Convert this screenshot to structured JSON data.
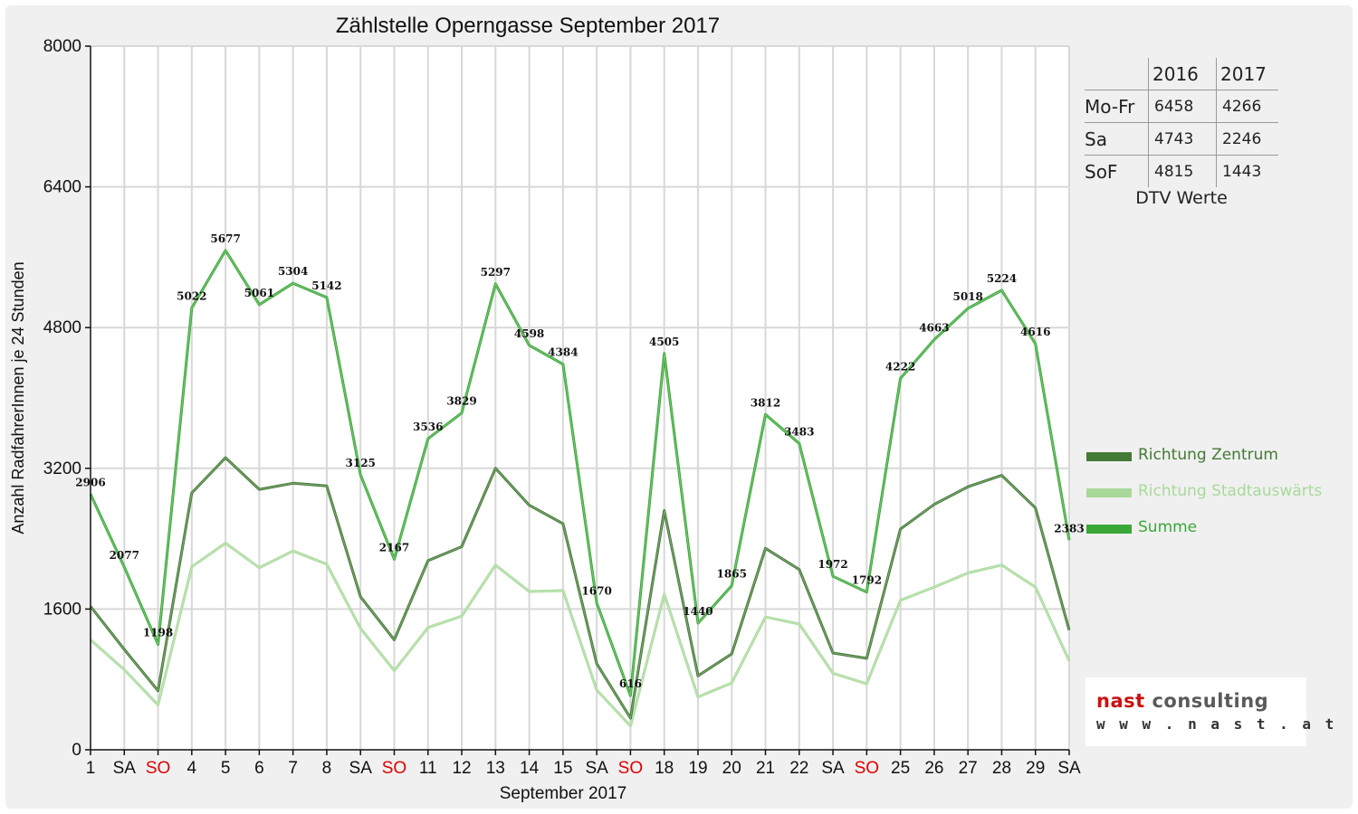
{
  "chart_data": {
    "type": "line",
    "title": "Zählstelle Operngasse September 2017",
    "xlabel": "September 2017",
    "ylabel": "Anzahl RadfahrerInnen je 24 Stunden",
    "ylim": [
      0,
      8000
    ],
    "yticks": [
      "0",
      "1600",
      "3200",
      "4800",
      "6400",
      "8000"
    ],
    "grid": true,
    "legend_position": "right",
    "categories": [
      "1",
      "SA",
      "SO",
      "4",
      "5",
      "6",
      "7",
      "8",
      "SA",
      "SO",
      "11",
      "12",
      "13",
      "14",
      "15",
      "SA",
      "SO",
      "18",
      "19",
      "20",
      "21",
      "22",
      "SA",
      "SO",
      "25",
      "26",
      "27",
      "28",
      "29",
      "SA"
    ],
    "category_colors": [
      "#111111",
      "#111111",
      "#e00000",
      "#111111",
      "#111111",
      "#111111",
      "#111111",
      "#111111",
      "#111111",
      "#e00000",
      "#111111",
      "#111111",
      "#111111",
      "#111111",
      "#111111",
      "#111111",
      "#e00000",
      "#111111",
      "#111111",
      "#111111",
      "#111111",
      "#111111",
      "#111111",
      "#e00000",
      "#111111",
      "#111111",
      "#111111",
      "#111111",
      "#111111",
      "#111111"
    ],
    "series": [
      {
        "name": "Richtung Zentrum",
        "color": "#437a35",
        "values": [
          1630,
          1140,
          670,
          2920,
          3320,
          2960,
          3030,
          3000,
          1740,
          1250,
          2150,
          2310,
          3200,
          2780,
          2570,
          980,
          360,
          2720,
          840,
          1090,
          2290,
          2050,
          1100,
          1040,
          2510,
          2790,
          2990,
          3120,
          2750,
          1360
        ]
      },
      {
        "name": "Richtung Stadtauswärts",
        "color": "#a8d99a",
        "values": [
          1250,
          910,
          510,
          2080,
          2350,
          2070,
          2260,
          2110,
          1380,
          900,
          1390,
          1520,
          2100,
          1800,
          1810,
          680,
          270,
          1770,
          600,
          760,
          1510,
          1430,
          870,
          750,
          1700,
          1850,
          2010,
          2100,
          1850,
          1010
        ]
      },
      {
        "name": "Summe",
        "color": "#3aa837",
        "values": [
          2906,
          2077,
          1198,
          5022,
          5677,
          5061,
          5304,
          5142,
          3125,
          2167,
          3536,
          3829,
          5297,
          4598,
          4384,
          1670,
          616,
          4505,
          1440,
          1865,
          3812,
          3483,
          1972,
          1792,
          4222,
          4663,
          5018,
          5224,
          4616,
          2383
        ]
      }
    ],
    "data_labels": [
      "2906",
      "2077",
      "1198",
      "5022",
      "5677",
      "5061",
      "5304",
      "5142",
      "3125",
      "2167",
      "3536",
      "3829",
      "5297",
      "4598",
      "4384",
      "1670",
      "616",
      "4505",
      "1440",
      "1865",
      "3812",
      "3483",
      "1972",
      "1792",
      "4222",
      "4663",
      "5018",
      "5224",
      "4616",
      "2383"
    ]
  },
  "dtv_table": {
    "headers": [
      "",
      "2016",
      "2017"
    ],
    "rows": [
      {
        "label": "Mo-Fr",
        "v2016": "6458",
        "v2017": "4266"
      },
      {
        "label": "Sa",
        "v2016": "4743",
        "v2017": "2246"
      },
      {
        "label": "SoF",
        "v2016": "4815",
        "v2017": "1443"
      }
    ],
    "caption": "DTV Werte"
  },
  "logo": {
    "word1": "nast",
    "word2": "consulting",
    "url": "w w w . n a s t . a t"
  }
}
